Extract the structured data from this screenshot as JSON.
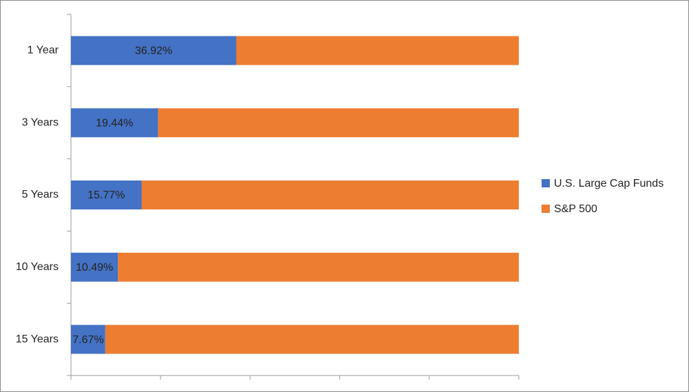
{
  "chart_data": {
    "type": "stacked-bar-horizontal",
    "categories": [
      "1 Year",
      "3 Years",
      "5 Years",
      "10 Years",
      "15 Years"
    ],
    "series": [
      {
        "name": "U.S. Large Cap Funds",
        "color": "#4472c4",
        "values": [
          36.92,
          19.44,
          15.77,
          10.49,
          7.67
        ],
        "value_labels": [
          "36.92%",
          "19.44%",
          "15.77%",
          "10.49%",
          "7.67%"
        ]
      },
      {
        "name": "S&P 500",
        "color": "#ed7d31",
        "values": [
          63.08,
          80.56,
          84.23,
          89.51,
          92.33
        ]
      }
    ],
    "xlim": [
      0,
      100
    ],
    "xticks": [
      0,
      20,
      40,
      60,
      80,
      100
    ],
    "legend": "right"
  }
}
